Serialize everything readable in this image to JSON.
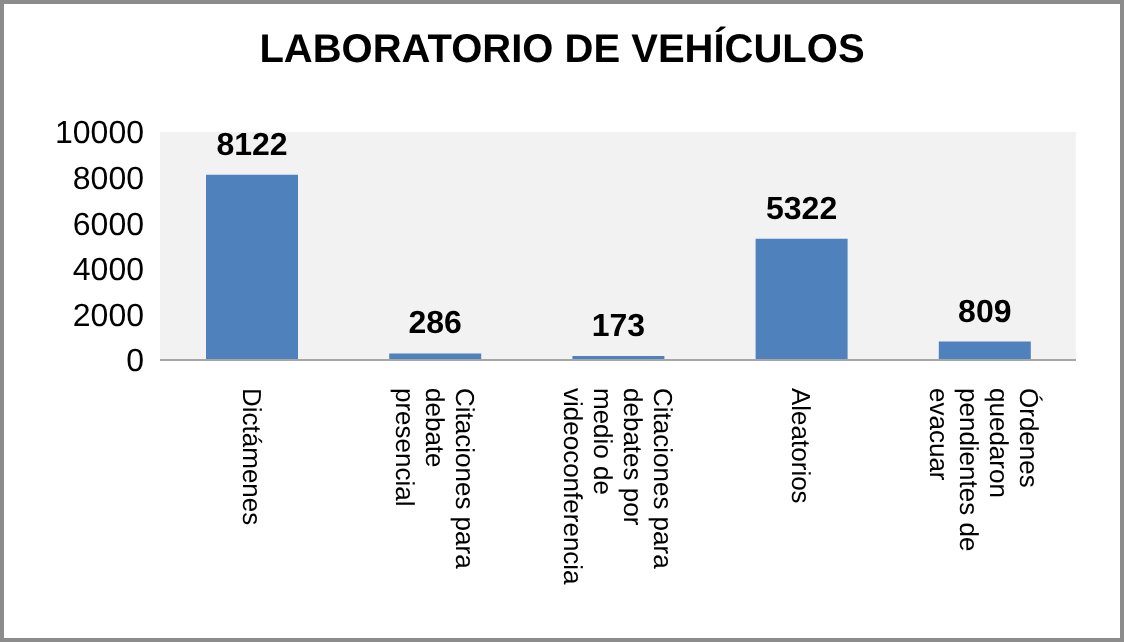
{
  "chart_data": {
    "type": "bar",
    "title": "LABORATORIO DE VEHÍCULOS",
    "categories": [
      "Dictámenes",
      "Citaciones para debate presencial",
      "Citaciones para debates por medio de videoconferencia",
      "Aleatorios",
      "Órdenes quedaron pendientes de evacuar"
    ],
    "values": [
      8122,
      286,
      173,
      5322,
      809
    ],
    "color": "#4f81bd",
    "ylim": [
      0,
      10000
    ],
    "yticks": [
      0,
      2000,
      4000,
      6000,
      8000,
      10000
    ],
    "grid": false,
    "legend": false,
    "data_labels": true
  }
}
